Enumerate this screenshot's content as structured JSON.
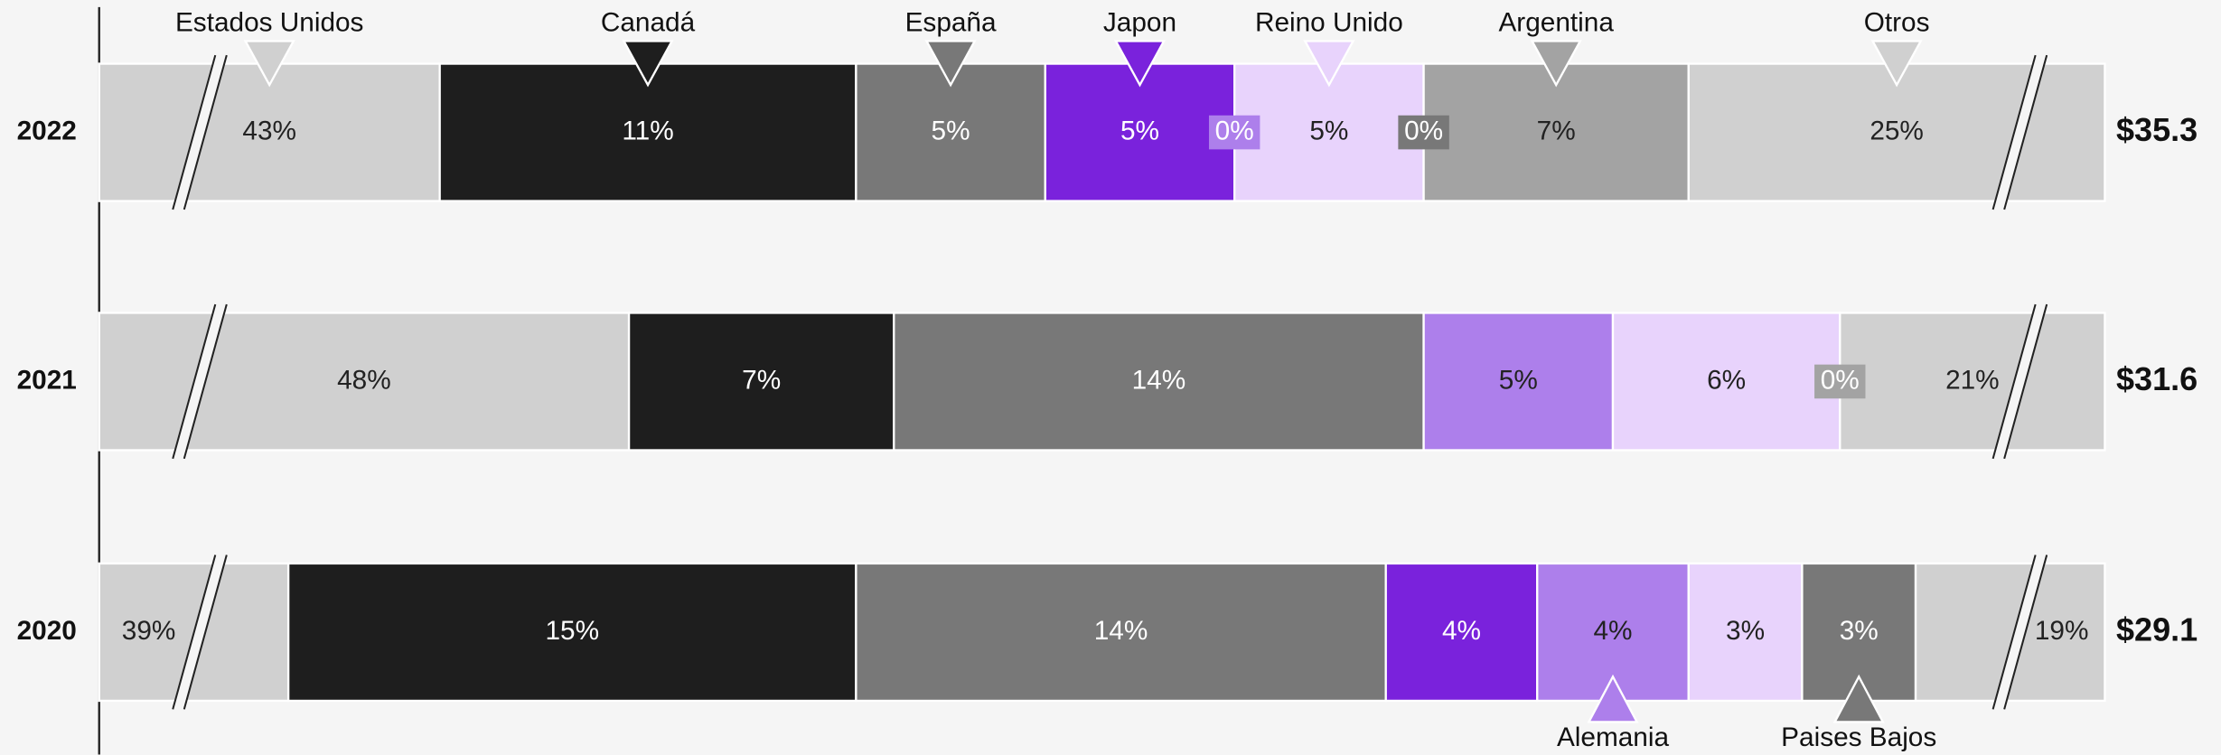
{
  "chart_data": {
    "type": "broken-stacked-bar",
    "categories": [
      "2022",
      "2021",
      "2020"
    ],
    "series": [
      {
        "name": "Estados Unidos",
        "color": "#d0d0d0",
        "values": [
          43,
          48,
          39
        ],
        "value_labels": [
          "43%",
          "48%",
          "39%"
        ]
      },
      {
        "name": "Canadá",
        "color": "#1e1e1e",
        "values": [
          11,
          7,
          15
        ],
        "value_labels": [
          "11%",
          "7%",
          "15%"
        ]
      },
      {
        "name": "España",
        "color": "#787878",
        "values": [
          5,
          14,
          14
        ],
        "value_labels": [
          "5%",
          "14%",
          "14%"
        ]
      },
      {
        "name": "Japon",
        "color": "#7a22dc",
        "values": [
          5,
          null,
          4
        ],
        "value_labels": [
          "5%",
          null,
          "4%"
        ]
      },
      {
        "name": "Alemania",
        "color": "#ad7feb",
        "values": [
          0,
          5,
          4
        ],
        "value_labels": [
          "0%",
          "5%",
          "4%"
        ]
      },
      {
        "name": "Reino Unido",
        "color": "#e8d3fc",
        "values": [
          5,
          6,
          3
        ],
        "value_labels": [
          "5%",
          "6%",
          "3%"
        ]
      },
      {
        "name": "Paises Bajos",
        "color": "#787878",
        "values": [
          0,
          null,
          3
        ],
        "value_labels": [
          "0%",
          null,
          "3%"
        ]
      },
      {
        "name": "Argentina",
        "color": "#a3a3a3",
        "values": [
          7,
          0,
          null
        ],
        "value_labels": [
          "7%",
          "0%",
          null
        ]
      },
      {
        "name": "Otros",
        "color": "#d0d0d0",
        "values": [
          25,
          21,
          19
        ],
        "value_labels": [
          "25%",
          "21%",
          "19%"
        ]
      }
    ],
    "totals": {
      "values": [
        35.3,
        31.6,
        29.1
      ],
      "value_labels": [
        "$35.3",
        "$31.6",
        "$29.1"
      ]
    }
  }
}
